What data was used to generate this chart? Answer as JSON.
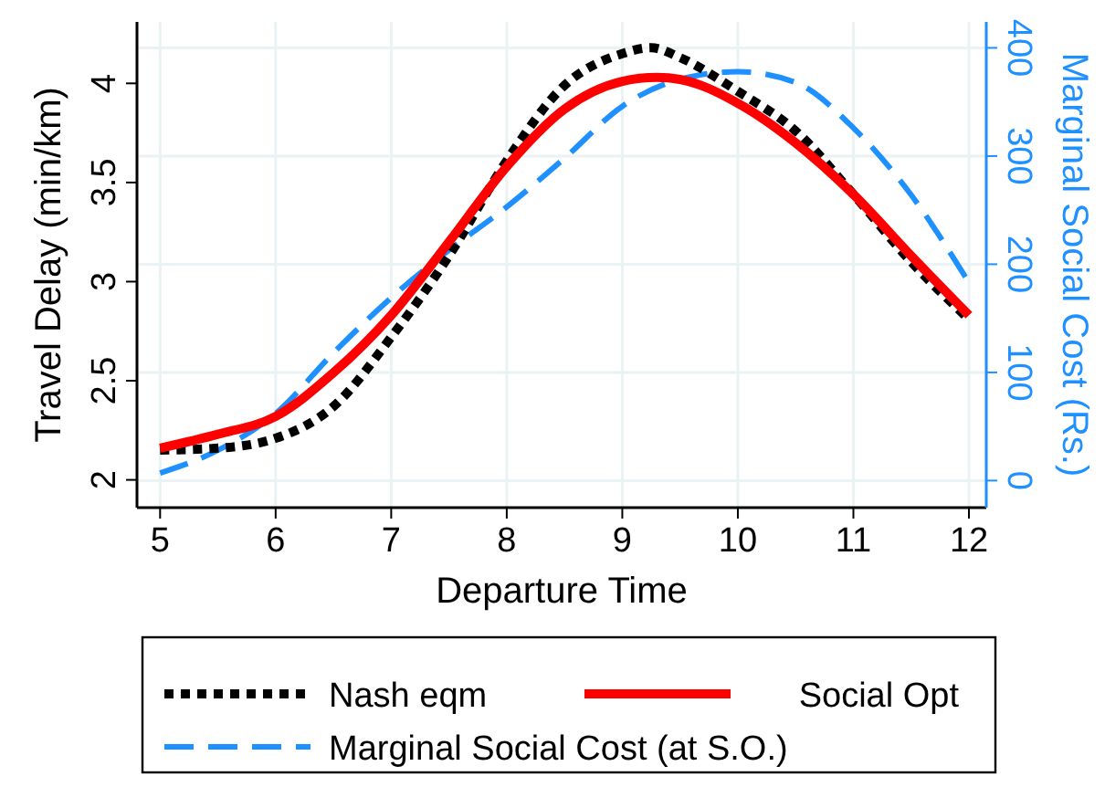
{
  "chart_data": {
    "type": "line",
    "xlabel": "Departure Time",
    "ylabel": "Travel Delay (min/km)",
    "y2label": "Marginal Social Cost (Rs.)",
    "xlim": [
      4.8,
      12.15
    ],
    "xticks": [
      5,
      6,
      7,
      8,
      9,
      10,
      11,
      12
    ],
    "ylim": [
      1.86,
      4.31
    ],
    "yticks": [
      2,
      2.5,
      3,
      3.5,
      4
    ],
    "y2lim": [
      -25,
      424
    ],
    "y2ticks": [
      0,
      100,
      200,
      300,
      400
    ],
    "grid": true,
    "legend": "bottom",
    "series": [
      {
        "name": "Nash eqm",
        "color": "#000000",
        "line_style": "dotted",
        "x": [
          5,
          5.5,
          6,
          6.5,
          7,
          7.5,
          8,
          8.5,
          9,
          9.25,
          9.5,
          10,
          10.5,
          11,
          11.5,
          12
        ],
        "values": [
          2.15,
          2.16,
          2.21,
          2.37,
          2.72,
          3.13,
          3.61,
          3.99,
          4.15,
          4.18,
          4.13,
          3.96,
          3.76,
          3.44,
          3.1,
          2.81
        ]
      },
      {
        "name": "Social Opt",
        "color": "#ff0000",
        "line_style": "solid",
        "x": [
          5,
          5.5,
          6,
          6.5,
          7,
          7.5,
          8,
          8.5,
          9,
          9.3,
          9.5,
          10,
          10.5,
          11,
          11.5,
          12
        ],
        "values": [
          2.16,
          2.23,
          2.32,
          2.54,
          2.83,
          3.2,
          3.58,
          3.87,
          4.01,
          4.03,
          4.02,
          3.9,
          3.7,
          3.44,
          3.13,
          2.83
        ]
      },
      {
        "name": "Marginal Social Cost (at S.O.)",
        "color": "#1e90ff",
        "line_style": "dashed",
        "axis": "y2",
        "x": [
          5,
          5.5,
          6,
          6.5,
          7,
          7.5,
          8,
          8.5,
          9,
          9.5,
          10,
          10.5,
          11,
          11.5,
          12
        ],
        "values": [
          7,
          28,
          62,
          118,
          169,
          213,
          253,
          298,
          346,
          371,
          378,
          368,
          326,
          264,
          183
        ]
      }
    ]
  }
}
